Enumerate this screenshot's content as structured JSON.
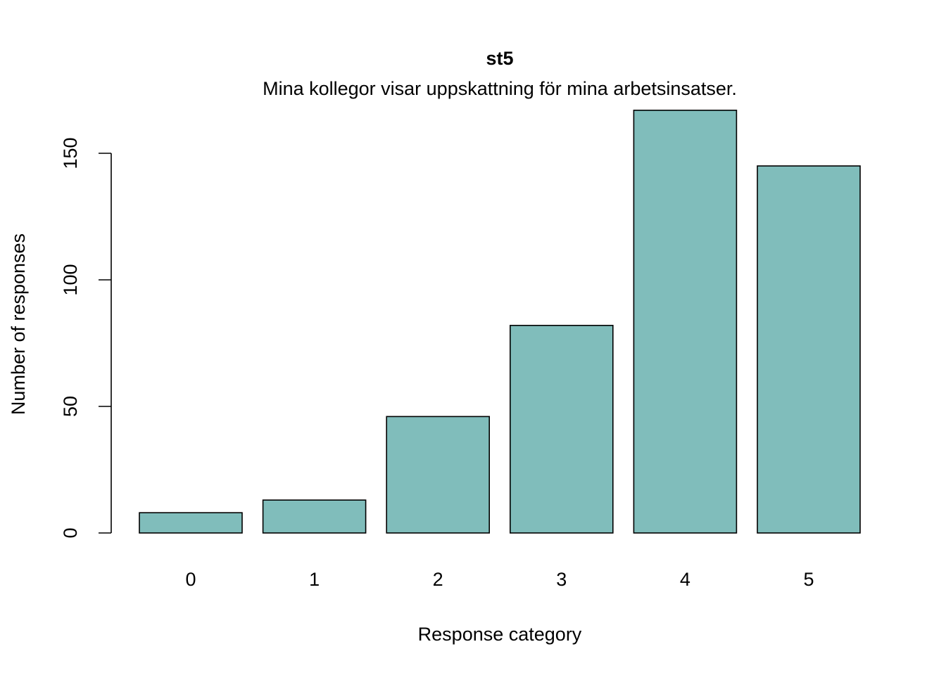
{
  "chart_data": {
    "type": "bar",
    "title": "st5",
    "subtitle": "Mina kollegor visar uppskattning för mina arbetsinsatser.",
    "xlabel": "Response category",
    "ylabel": "Number of responses",
    "categories": [
      "0",
      "1",
      "2",
      "3",
      "4",
      "5"
    ],
    "values": [
      8,
      13,
      46,
      82,
      167,
      145
    ],
    "ylim": [
      0,
      167
    ],
    "yticks": [
      0,
      50,
      100,
      150
    ],
    "bar_color": "#80bdbb",
    "grid": false,
    "legend": "none"
  }
}
